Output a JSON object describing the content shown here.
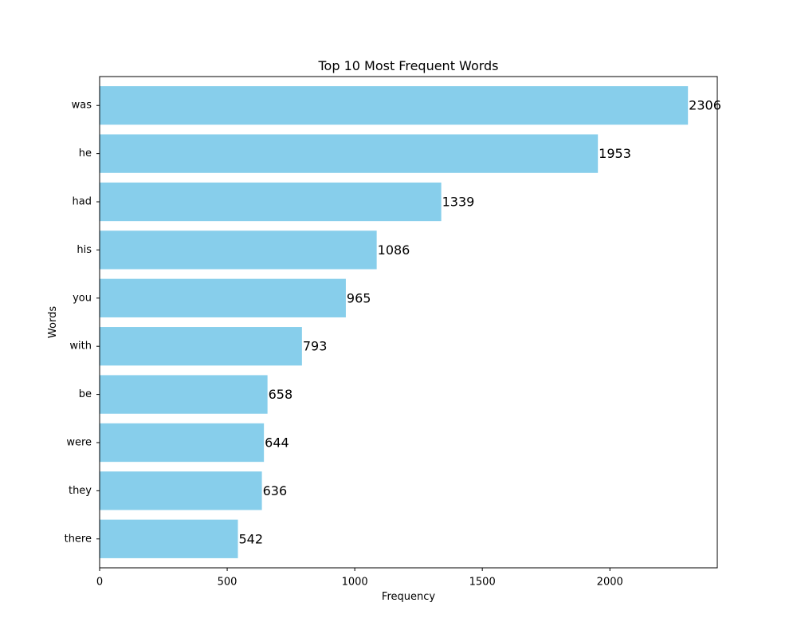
{
  "chart_data": {
    "type": "bar",
    "orientation": "horizontal",
    "title": "Top 10 Most Frequent Words",
    "xlabel": "Frequency",
    "ylabel": "Words",
    "categories": [
      "was",
      "he",
      "had",
      "his",
      "you",
      "with",
      "be",
      "were",
      "they",
      "there"
    ],
    "values": [
      2306,
      1953,
      1339,
      1086,
      965,
      793,
      658,
      644,
      636,
      542
    ],
    "data_labels": [
      "2306",
      "1953",
      "1339",
      "1086",
      "965",
      "793",
      "658",
      "644",
      "636",
      "542"
    ],
    "xlim": [
      0,
      2421
    ],
    "xticks": [
      0,
      500,
      1000,
      1500,
      2000
    ],
    "xtick_labels": [
      "0",
      "500",
      "1000",
      "1500",
      "2000"
    ],
    "grid": false,
    "bar_color": "#87ceeb"
  }
}
